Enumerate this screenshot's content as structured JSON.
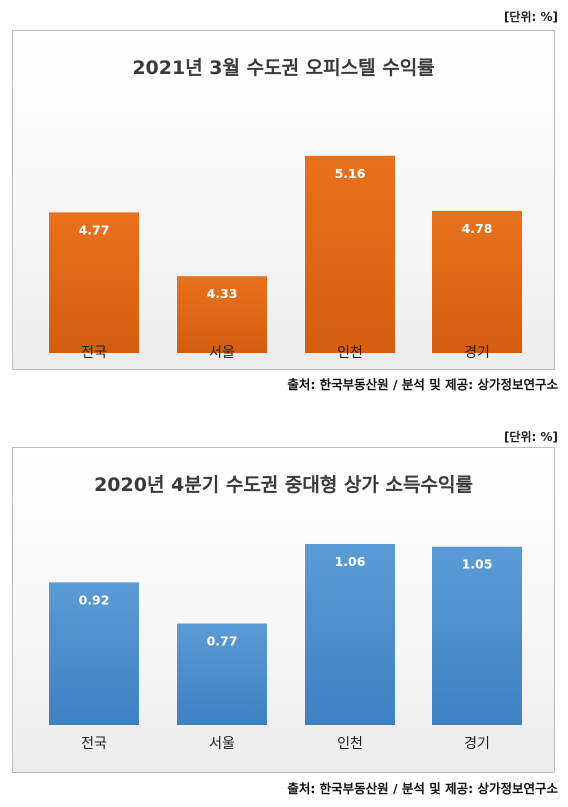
{
  "chart_data": [
    {
      "type": "bar",
      "unit_label": "[단위: %]",
      "title": "2021년 3월 수도권 오피스텔 수익률",
      "categories": [
        "전국",
        "서울",
        "인천",
        "경기"
      ],
      "values": [
        4.77,
        4.33,
        5.16,
        4.78
      ],
      "value_labels": [
        "4.77",
        "4.33",
        "5.16",
        "4.78"
      ],
      "ylim": [
        3.8,
        5.4
      ],
      "grid": false,
      "legend": "none",
      "bar_color": "#E8711E",
      "bar_color_dark": "#D45E10",
      "source": "출처: 한국부동산원 / 분석 및 제공: 상가정보연구소"
    },
    {
      "type": "bar",
      "unit_label": "[단위: %]",
      "title": "2020년 4분기 수도권 중대형 상가 소득수익률",
      "categories": [
        "전국",
        "서울",
        "인천",
        "경기"
      ],
      "values": [
        0.92,
        0.77,
        1.06,
        1.05
      ],
      "value_labels": [
        "0.92",
        "0.77",
        "1.06",
        "1.05"
      ],
      "ylim": [
        0.4,
        1.1
      ],
      "grid": false,
      "legend": "none",
      "bar_color": "#5B9BD5",
      "bar_color_dark": "#3F80C2",
      "source": "출처: 한국부동산원 / 분석 및 제공: 상가정보연구소"
    }
  ]
}
